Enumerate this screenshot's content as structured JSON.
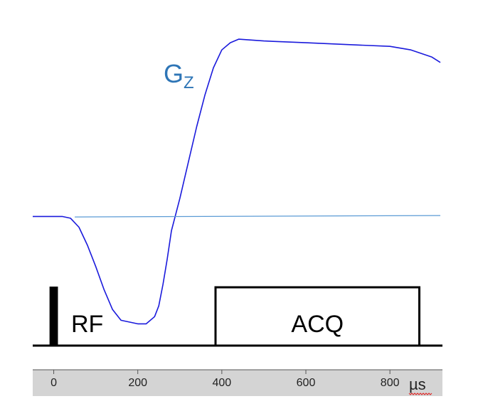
{
  "chart_data": {
    "type": "line",
    "series": [
      {
        "name": "GZ",
        "color": "#1a1adc",
        "x": [
          -50,
          -20,
          0,
          20,
          40,
          60,
          80,
          100,
          120,
          140,
          160,
          180,
          200,
          220,
          240,
          250,
          260,
          270,
          280,
          300,
          320,
          340,
          360,
          380,
          400,
          420,
          440,
          500,
          600,
          700,
          800,
          850,
          900,
          920
        ],
        "y": [
          0,
          0,
          0,
          0,
          -1,
          -6,
          -16,
          -28,
          -41,
          -52,
          -58,
          -59,
          -60,
          -60,
          -56,
          -50,
          -38,
          -24,
          -8,
          10,
          30,
          50,
          68,
          83,
          93,
          97,
          99,
          98,
          97,
          96,
          95,
          93,
          89,
          86
        ]
      },
      {
        "name": "zero-line",
        "color": "#5b9bd5",
        "x": [
          50,
          920
        ],
        "y": [
          -0.3,
          0.5
        ]
      }
    ],
    "series_label": {
      "main": "G",
      "sub": "Z",
      "color": "#2e75b6"
    },
    "blocks": [
      {
        "label": "RF",
        "x_start": -10,
        "x_end": 10,
        "filled": true
      },
      {
        "label": "ACQ",
        "x_start": 385,
        "x_end": 870,
        "filled": false
      }
    ],
    "xaxis": {
      "ticks": [
        0,
        200,
        400,
        600,
        800
      ],
      "tick_labels": [
        "0",
        "200",
        "400",
        "600",
        "800"
      ],
      "unit": "µs",
      "xlim": [
        -50,
        925
      ]
    },
    "ylim": [
      -65,
      105
    ],
    "grid": false
  }
}
